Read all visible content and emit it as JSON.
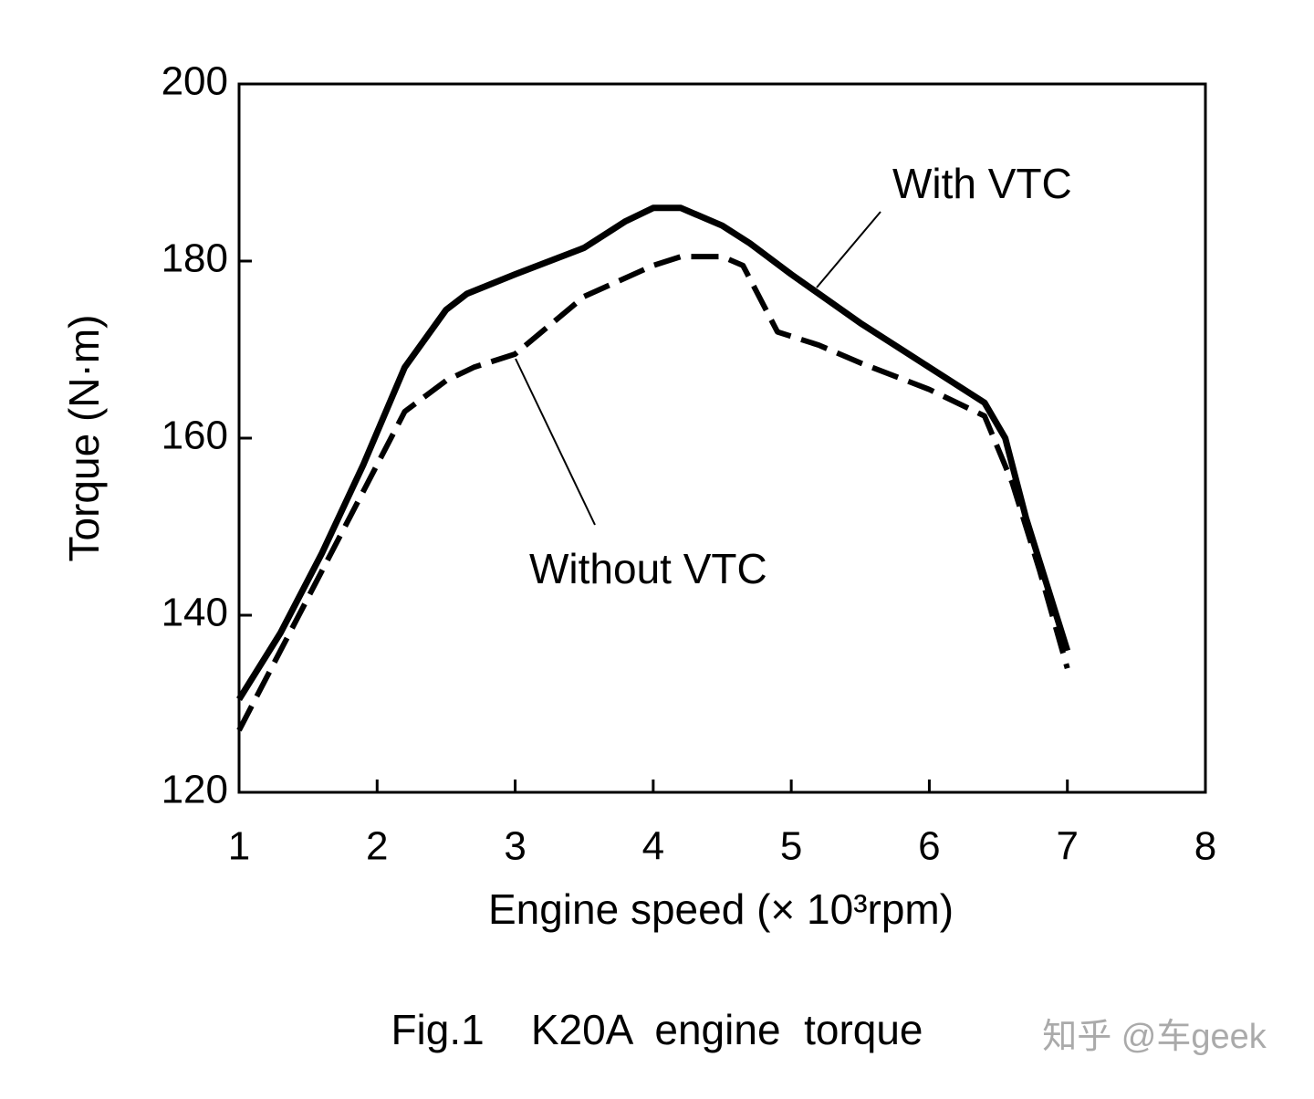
{
  "chart_data": {
    "type": "line",
    "ylabel": "Torque (N·m)",
    "xlabel": "Engine speed (× 10³rpm)",
    "caption": "Fig.1    K20A  engine  torque",
    "watermark": "知乎 @车geek",
    "xlim": [
      1,
      8
    ],
    "xticks": [
      1,
      2,
      3,
      4,
      5,
      6,
      7,
      8
    ],
    "ylim": [
      120,
      200
    ],
    "yticks": [
      120,
      140,
      160,
      180,
      200
    ],
    "series": [
      {
        "name": "With VTC",
        "color": "#000000",
        "style": "solid",
        "x": [
          1,
          1.3,
          1.6,
          1.9,
          2.2,
          2.5,
          2.65,
          3,
          3.5,
          3.8,
          4,
          4.2,
          4.5,
          4.7,
          5,
          5.5,
          6,
          6.4,
          6.55,
          6.7,
          7
        ],
        "values": [
          130.5,
          138,
          147,
          157,
          168,
          174.5,
          176.3,
          178.5,
          181.5,
          184.5,
          186,
          186,
          184,
          182,
          178.5,
          173,
          168,
          164,
          160,
          151,
          136
        ]
      },
      {
        "name": "Without VTC",
        "color": "#000000",
        "style": "dashed",
        "x": [
          1,
          1.3,
          1.6,
          1.9,
          2.2,
          2.5,
          2.7,
          3,
          3.5,
          4,
          4.2,
          4.5,
          4.65,
          4.8,
          4.9,
          5.2,
          5.5,
          6,
          6.4,
          6.6,
          6.8,
          7
        ],
        "values": [
          127,
          136,
          145,
          154,
          163,
          166.5,
          168,
          169.5,
          176,
          179.5,
          180.5,
          180.5,
          179.5,
          175,
          172,
          170.5,
          168.5,
          165.5,
          162.5,
          155,
          145,
          134
        ]
      }
    ]
  }
}
